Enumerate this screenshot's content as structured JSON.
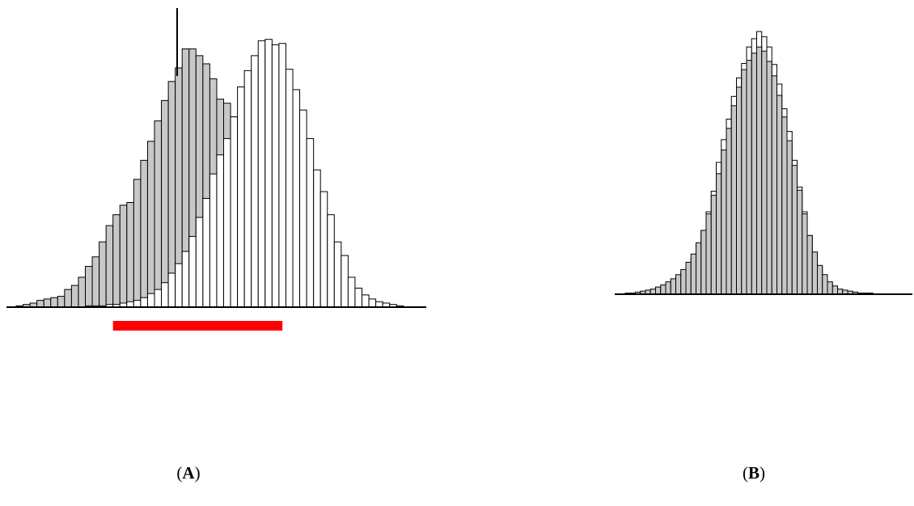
{
  "chart_data": [
    {
      "type": "bar",
      "panel_label": "A",
      "overlay": "histogram",
      "colors": {
        "gray_series": "#c8c8c8",
        "white_series": "#ffffff",
        "outline": "#000000",
        "range_bar": "#ff0000"
      },
      "series": [
        {
          "fill": "gray_series",
          "values": [
            1,
            2,
            3,
            5,
            6,
            7,
            8,
            13,
            16,
            22,
            30,
            37,
            48,
            60,
            68,
            75,
            77,
            94,
            108,
            122,
            137,
            152,
            166,
            176,
            190,
            190,
            185,
            179,
            168,
            153,
            150,
            140,
            116,
            112,
            93,
            77,
            64,
            49,
            34,
            29,
            28,
            22,
            16,
            13,
            9,
            6,
            5,
            4,
            3,
            2,
            2,
            1
          ]
        },
        {
          "fill": "white_series",
          "values": [
            0,
            0,
            0,
            0,
            0,
            0,
            0,
            0,
            0,
            0,
            1,
            1,
            1,
            2,
            2,
            3,
            4,
            5,
            7,
            10,
            13,
            18,
            25,
            32,
            41,
            52,
            66,
            80,
            98,
            112,
            124,
            140,
            162,
            174,
            185,
            196,
            197,
            193,
            194,
            175,
            160,
            145,
            124,
            101,
            85,
            68,
            48,
            38,
            22,
            14,
            9,
            6,
            4,
            3,
            2,
            1
          ]
        }
      ],
      "peak_value": 220,
      "range_bar": {
        "from_bin": 14,
        "to_bin": 38.5
      }
    },
    {
      "type": "bar",
      "panel_label": "B",
      "overlay": "histogram",
      "colors": {
        "gray_series": "#c8c8c8",
        "white_series": "#ffffff",
        "outline": "#000000"
      },
      "series": [
        {
          "fill": "white_series",
          "values": [
            1,
            1,
            2,
            2,
            3,
            4,
            5,
            7,
            10,
            13,
            17,
            22,
            28,
            35,
            48,
            62,
            80,
            100,
            128,
            150,
            170,
            192,
            210,
            224,
            240,
            248,
            255,
            250,
            240,
            223,
            204,
            180,
            158,
            130,
            104,
            80,
            57,
            39,
            26,
            16,
            10,
            6,
            4,
            3,
            2,
            2,
            1,
            1,
            1
          ]
        },
        {
          "fill": "gray_series",
          "values": [
            1,
            1,
            2,
            3,
            4,
            5,
            7,
            9,
            12,
            15,
            19,
            24,
            31,
            39,
            50,
            62,
            78,
            96,
            117,
            140,
            161,
            183,
            201,
            218,
            227,
            234,
            240,
            236,
            226,
            212,
            193,
            172,
            149,
            125,
            101,
            78,
            57,
            41,
            28,
            19,
            12,
            8,
            5,
            4,
            3,
            2,
            1,
            1,
            1
          ]
        }
      ]
    }
  ]
}
